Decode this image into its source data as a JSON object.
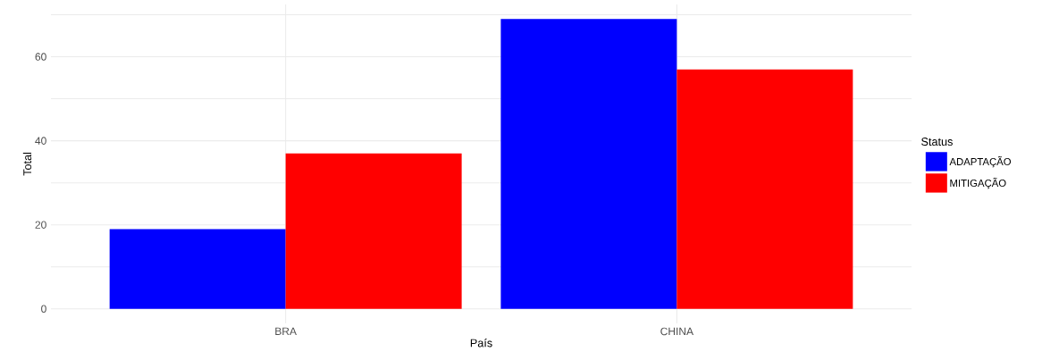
{
  "chart_data": {
    "type": "bar",
    "xlabel": "País",
    "ylabel": "Total",
    "legend_title": "Status",
    "categories": [
      "BRA",
      "CHINA"
    ],
    "series": [
      {
        "name": "ADAPTAÇÃO",
        "color": "#0000ff",
        "values": [
          19,
          69
        ]
      },
      {
        "name": "MITIGAÇÃO",
        "color": "#ff0000",
        "values": [
          37,
          57
        ]
      }
    ],
    "ylim": [
      -3.45,
      72.45
    ],
    "yticks": [
      0,
      {
        "value": 10,
        "label": null
      },
      20,
      {
        "value": 30,
        "label": null
      },
      40,
      {
        "value": 50,
        "label": null
      },
      60,
      {
        "value": 70,
        "label": null
      }
    ],
    "grid": true,
    "legend": "right"
  }
}
